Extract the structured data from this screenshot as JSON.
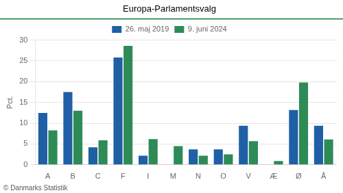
{
  "chart_data": {
    "type": "bar",
    "title": "Europa-Parlamentsvalg",
    "categories": [
      "A",
      "B",
      "C",
      "F",
      "I",
      "M",
      "N",
      "O",
      "V",
      "Æ",
      "Ø",
      "Å"
    ],
    "series": [
      {
        "name": "26. maj 2019",
        "color": "#1f5fa6",
        "values": [
          12.5,
          17.5,
          4.2,
          25.8,
          2.2,
          0,
          3.7,
          3.7,
          9.4,
          0,
          13.2,
          9.4
        ]
      },
      {
        "name": "9. juni 2024",
        "color": "#2e8b57",
        "values": [
          8.3,
          13.0,
          5.9,
          28.6,
          6.2,
          4.5,
          2.2,
          2.5,
          5.7,
          0.9,
          19.8,
          6.1
        ]
      }
    ],
    "ylabel": "Pct.",
    "ylim": [
      0,
      30
    ],
    "yticks": [
      0,
      5,
      10,
      15,
      20,
      25,
      30
    ],
    "grid": true,
    "legend": "top",
    "footer": "© Danmarks Statistik"
  }
}
